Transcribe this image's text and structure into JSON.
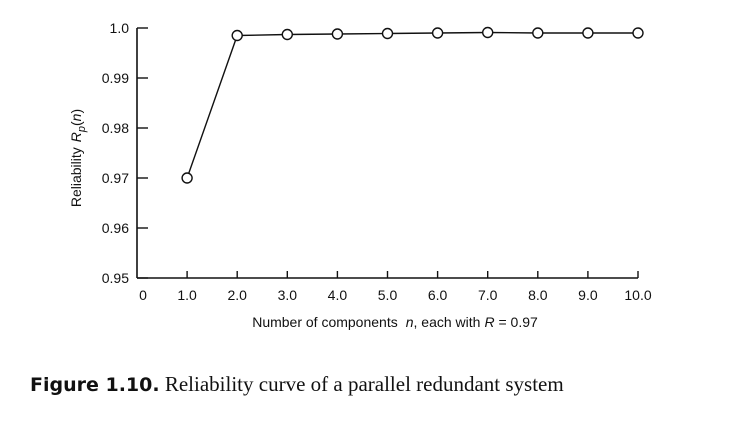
{
  "chart_data": {
    "type": "line",
    "x": [
      1.0,
      2.0,
      3.0,
      4.0,
      5.0,
      6.0,
      7.0,
      8.0,
      9.0,
      10.0
    ],
    "series": [
      {
        "values": [
          0.97,
          0.9985,
          0.9987,
          0.9988,
          0.9989,
          0.999,
          0.9991,
          0.999,
          0.999,
          0.999
        ]
      }
    ],
    "x_ticks": [
      "0",
      "1.0",
      "2.0",
      "3.0",
      "4.0",
      "5.0",
      "6.0",
      "7.0",
      "8.0",
      "9.0",
      "10.0"
    ],
    "y_ticks": [
      "0.95",
      "0.96",
      "0.97",
      "0.98",
      "0.99",
      "1.0"
    ],
    "xlim": [
      0,
      10
    ],
    "ylim": [
      0.95,
      1.0
    ],
    "xlabel": {
      "prefix": "Number of components",
      "var": "n",
      "middle": ", each with",
      "param": "R",
      "suffix": " = 0.97"
    },
    "ylabel": {
      "prefix": "Reliability",
      "var": "R",
      "sub": "p",
      "arg_open": "(",
      "arg": "n",
      "arg_close": ")"
    },
    "grid": false,
    "marker": "open-circle"
  },
  "caption": {
    "label": "Figure 1.10.",
    "text": " Reliability curve of a parallel redundant system"
  }
}
